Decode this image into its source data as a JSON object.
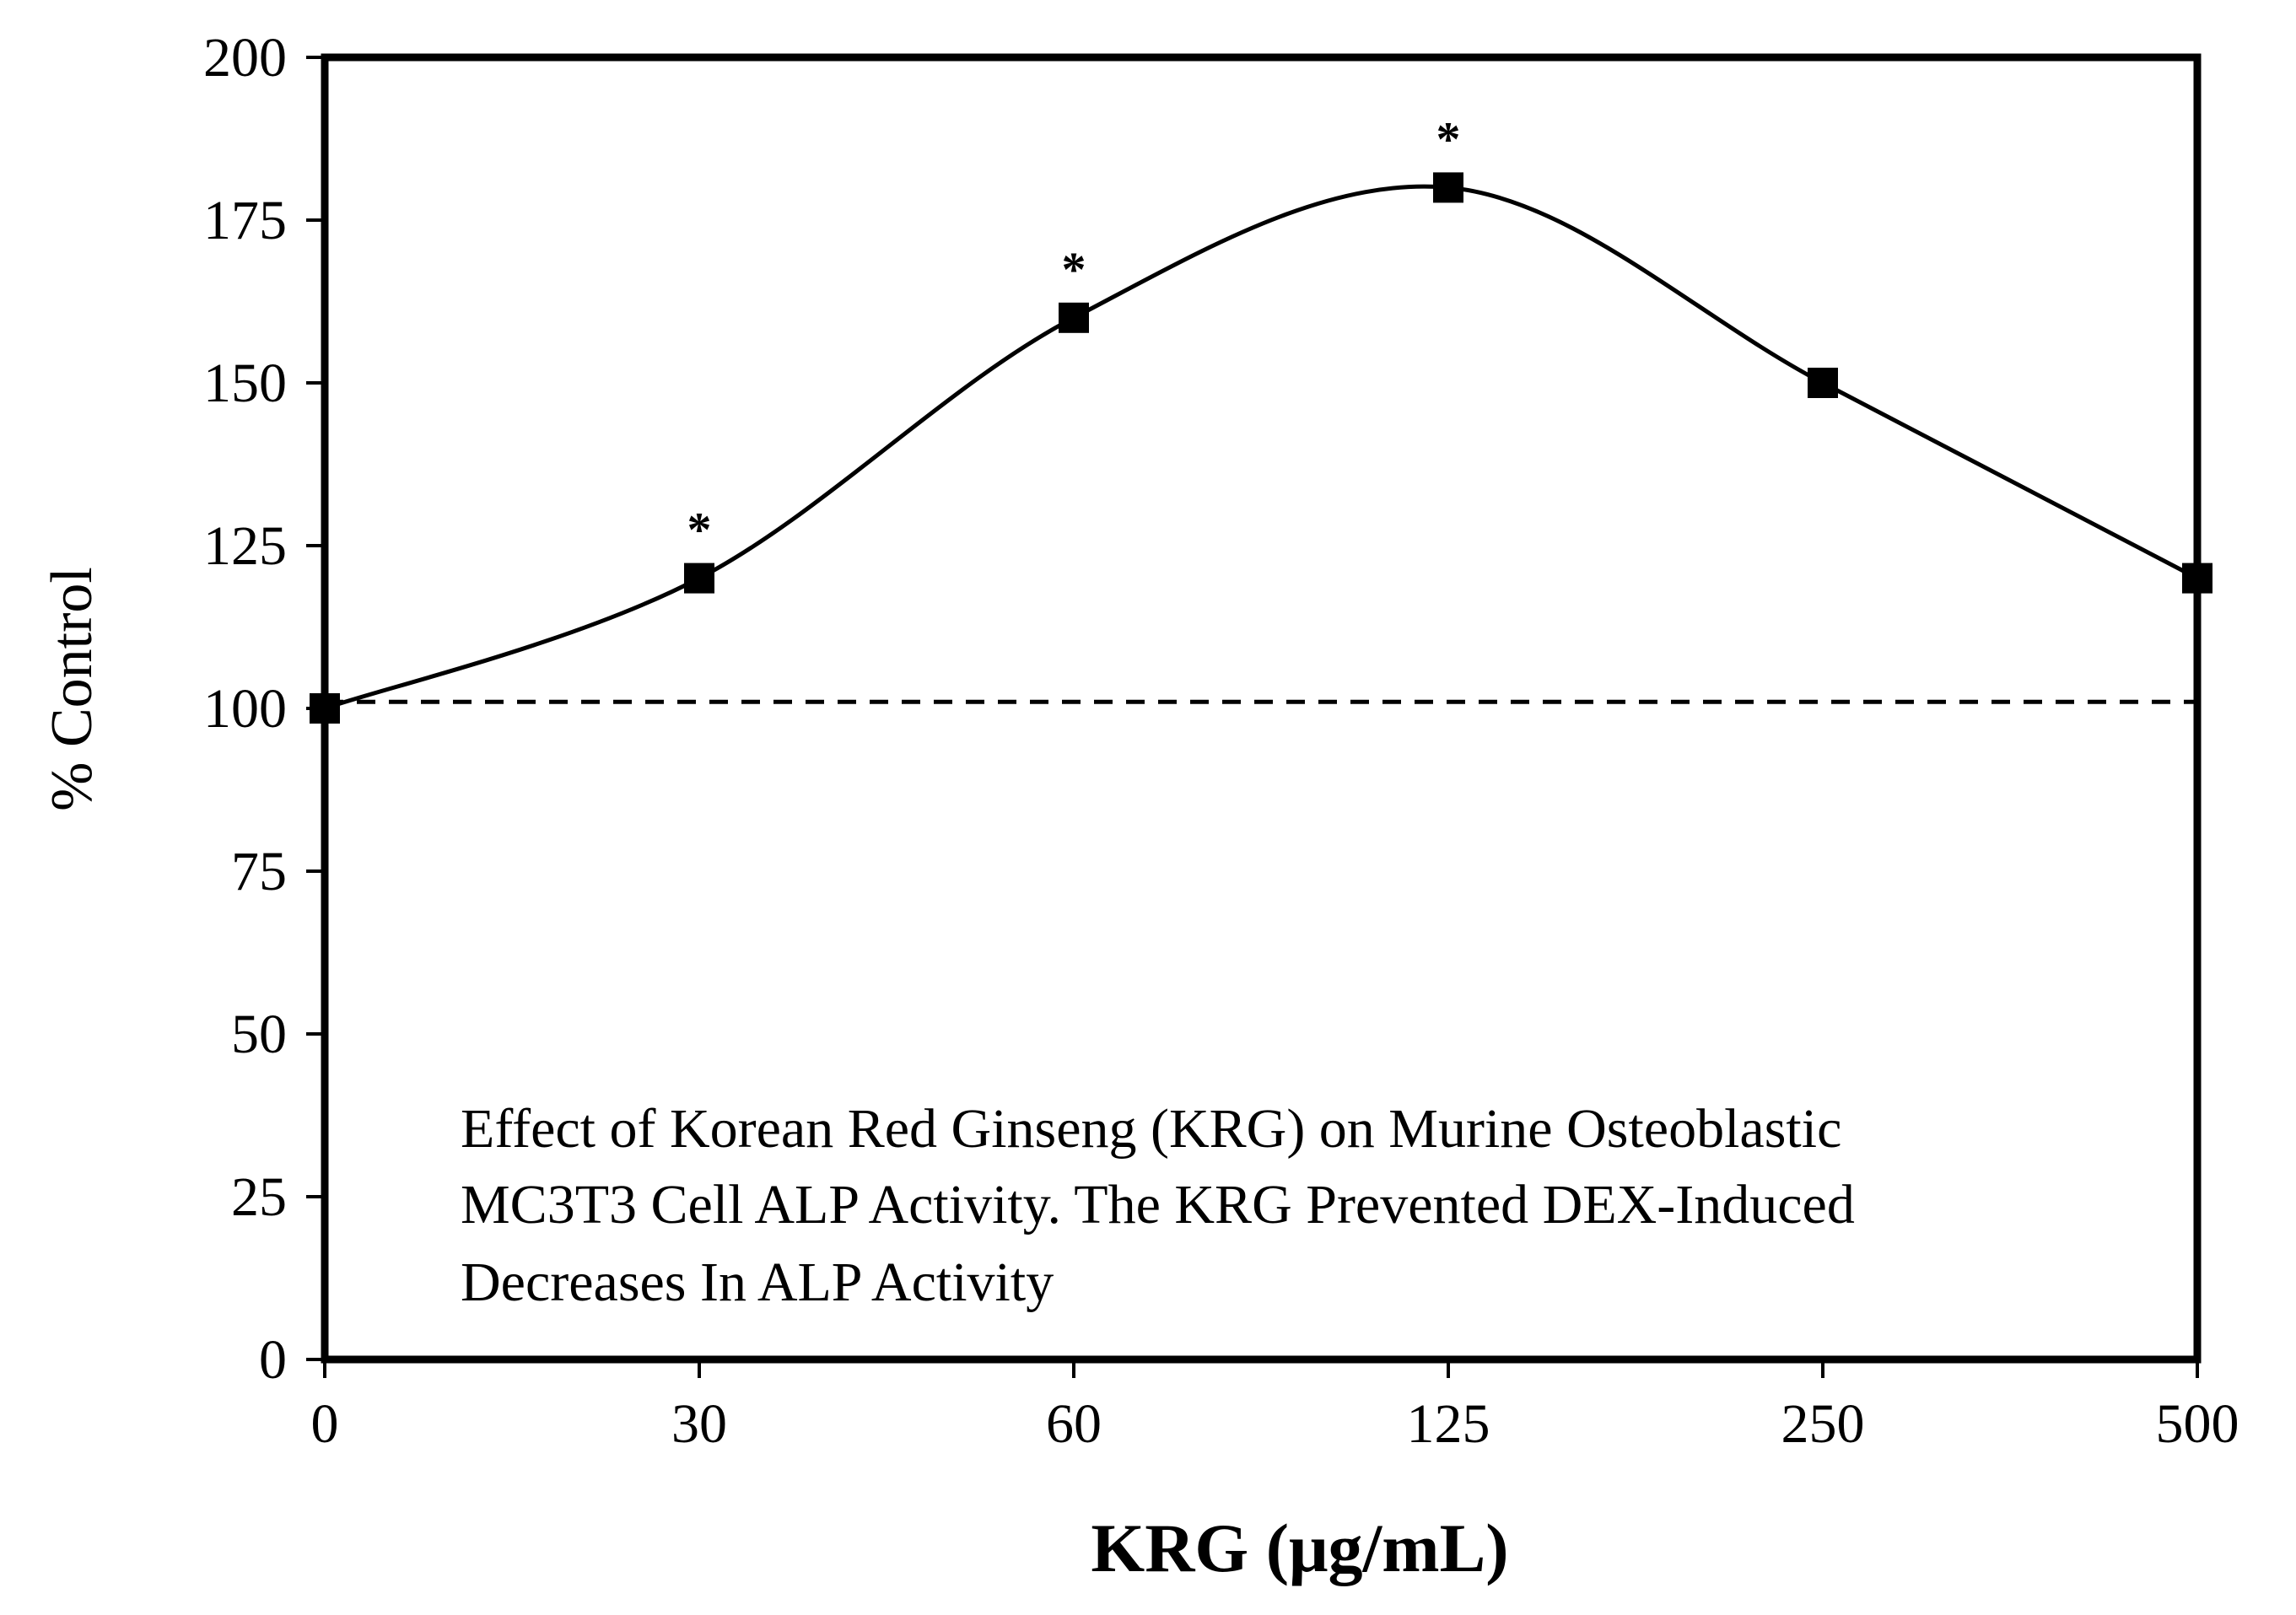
{
  "chart_data": {
    "type": "line",
    "title": "",
    "xlabel": "KRG (μg/mL)",
    "ylabel": "% Control",
    "categories": [
      "0",
      "30",
      "60",
      "125",
      "250",
      "500"
    ],
    "series": [
      {
        "name": "ALP Activity",
        "values": [
          100,
          120,
          160,
          180,
          150,
          120
        ]
      }
    ],
    "significance_marker": "*",
    "significant_points": [
      false,
      true,
      true,
      true,
      false,
      false
    ],
    "reference_line": {
      "value": 101,
      "style": "dashed"
    },
    "ylim": [
      0,
      200
    ],
    "yticks": [
      0,
      25,
      50,
      75,
      100,
      125,
      150,
      175,
      200
    ],
    "annotation_lines": [
      "Effect of Korean Red Ginseng (KRG) on Murine Osteoblastic",
      "MC3T3 Cell ALP Activity. The KRG Prevented DEX-Induced",
      "Decreases In ALP Activity"
    ],
    "grid": false,
    "legend": "none"
  }
}
